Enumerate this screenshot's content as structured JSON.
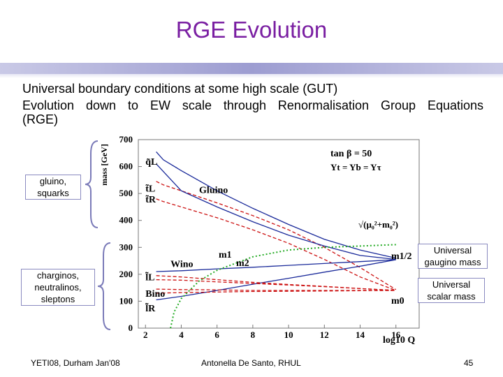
{
  "slide": {
    "title": "RGE Evolution",
    "bullets": [
      "Universal boundary conditions at some high scale (GUT)",
      "Evolution down to EW scale through Renormalisation Group Equations",
      "(RGE)"
    ]
  },
  "annotations": {
    "gluino_squarks": [
      "gluino,",
      "squarks"
    ],
    "charginos": [
      "charginos,",
      "neutralinos,",
      "sleptons"
    ],
    "gaugino_mass": [
      "Universal",
      "gaugino mass"
    ],
    "scalar_mass": [
      "Universal",
      "scalar mass"
    ]
  },
  "footer": {
    "left": "YETI08, Durham Jan'08",
    "center": "Antonella De Santo, RHUL",
    "page": "45"
  },
  "colors": {
    "title": "#7a1fa2",
    "red": "#cc1111",
    "blue": "#1a2a9a",
    "green": "#22aa22"
  },
  "chart_data": {
    "type": "line",
    "xlabel": "log10 Q",
    "ylabel": "mass [GeV]",
    "xlim": [
      1.6,
      17.3
    ],
    "ylim": [
      0,
      700
    ],
    "xticks": [
      2,
      4,
      6,
      8,
      10,
      12,
      14,
      16
    ],
    "yticks": [
      0,
      100,
      200,
      300,
      400,
      500,
      600,
      700
    ],
    "annotations": {
      "param1": "tan β = 50",
      "param2": "Yt = Yb = Yτ",
      "sqrt": "√(μ₀²+m₀²)",
      "m1": "m1",
      "m2": "m2",
      "m12": "m1/2",
      "m0": "m0"
    },
    "series": [
      {
        "name": "q̃L",
        "label": "q̃L",
        "color": "#1a2a9a",
        "dash": "solid",
        "x": [
          2.6,
          3,
          4,
          6,
          8,
          10,
          12,
          14,
          16
        ],
        "y": [
          655,
          625,
          585,
          510,
          445,
          385,
          330,
          290,
          260
        ]
      },
      {
        "name": "t̃L",
        "label": "t̃L",
        "color": "#cc1111",
        "dash": "dashed",
        "x": [
          2.6,
          3,
          4,
          6,
          8,
          10,
          12,
          14,
          16
        ],
        "y": [
          545,
          532,
          510,
          465,
          418,
          365,
          300,
          225,
          143
        ]
      },
      {
        "name": "t̃R",
        "label": "t̃R",
        "color": "#cc1111",
        "dash": "dashed",
        "x": [
          2.6,
          3,
          4,
          6,
          8,
          10,
          12,
          14,
          16
        ],
        "y": [
          480,
          470,
          450,
          410,
          365,
          315,
          255,
          190,
          140
        ]
      },
      {
        "name": "Gluino",
        "label": "Gluino",
        "color": "#1a2a9a",
        "dash": "solid",
        "x": [
          2.6,
          4,
          6,
          8,
          10,
          12,
          14,
          16
        ],
        "y": [
          610,
          510,
          450,
          395,
          345,
          305,
          270,
          255
        ]
      },
      {
        "name": "Wino",
        "label": "Wino",
        "color": "#1a2a9a",
        "dash": "solid",
        "x": [
          2.6,
          4,
          6,
          8,
          10,
          12,
          14,
          16
        ],
        "y": [
          210,
          213,
          220,
          226,
          233,
          240,
          247,
          254
        ]
      },
      {
        "name": "Bino",
        "label": "Bino",
        "color": "#1a2a9a",
        "dash": "solid",
        "x": [
          2.6,
          4,
          6,
          8,
          10,
          12,
          14,
          16
        ],
        "y": [
          105,
          118,
          140,
          163,
          185,
          208,
          230,
          254
        ]
      },
      {
        "name": "l̃L",
        "label": "l̃L",
        "color": "#cc1111",
        "dash": "dashed",
        "x": [
          2.6,
          4,
          6,
          8,
          10,
          12,
          14,
          16
        ],
        "y": [
          195,
          190,
          180,
          170,
          162,
          155,
          147,
          140
        ]
      },
      {
        "name": "l̃R",
        "label": "l̃R",
        "color": "#cc1111",
        "dash": "dashed",
        "x": [
          2.6,
          4,
          6,
          8,
          10,
          12,
          14,
          16
        ],
        "y": [
          145,
          143,
          142,
          140,
          140,
          140,
          140,
          140
        ]
      },
      {
        "name": "Higgs1",
        "label": "",
        "color": "#cc1111",
        "dash": "dashed",
        "x": [
          2.6,
          4,
          6,
          8,
          10,
          12,
          14,
          16
        ],
        "y": [
          180,
          178,
          172,
          166,
          160,
          154,
          147,
          140
        ]
      },
      {
        "name": "Higgs2",
        "label": "",
        "color": "#cc1111",
        "dash": "dashed",
        "x": [
          2.6,
          4,
          6,
          8,
          10,
          12,
          14,
          16
        ],
        "y": [
          130,
          132,
          134,
          136,
          137,
          138,
          139,
          140
        ]
      },
      {
        "name": "√(μ0²+m0²)",
        "label": "",
        "color": "#22aa22",
        "dash": "dotted",
        "x": [
          3.4,
          3.6,
          4,
          5,
          6,
          8,
          10,
          12,
          14,
          16
        ],
        "y": [
          0,
          60,
          110,
          175,
          215,
          265,
          290,
          300,
          305,
          310
        ]
      }
    ]
  }
}
